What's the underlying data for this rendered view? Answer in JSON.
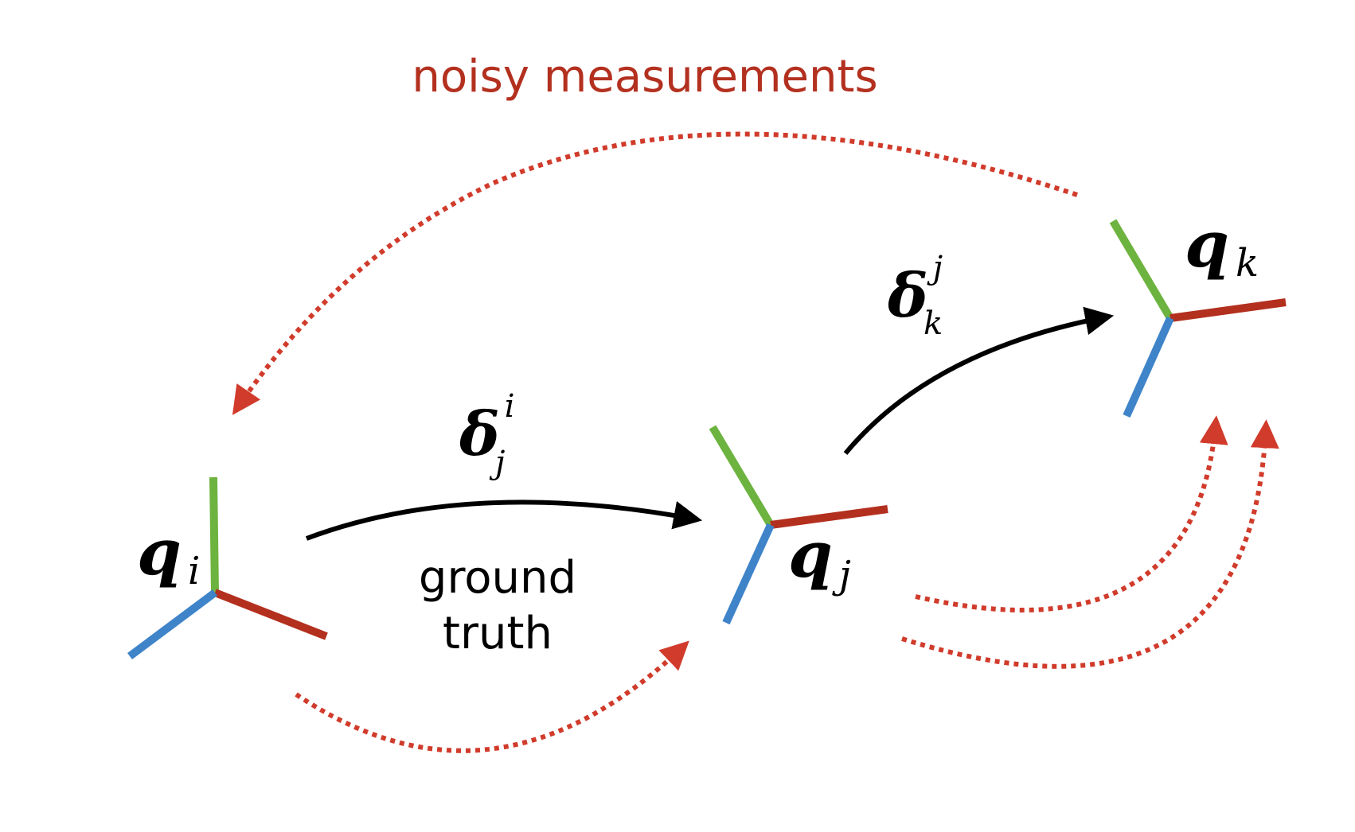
{
  "title": "noisy measurements",
  "ground_truth": {
    "line1": "ground",
    "line2": "truth"
  },
  "frames": {
    "qi": {
      "symbol": "q",
      "subscript": "i"
    },
    "qj": {
      "symbol": "q",
      "subscript": "j"
    },
    "qk": {
      "symbol": "q",
      "subscript": "k"
    }
  },
  "deltas": {
    "ij": {
      "symbol": "δ",
      "superscript": "i",
      "subscript": "j"
    },
    "jk": {
      "symbol": "δ",
      "superscript": "j",
      "subscript": "k"
    }
  },
  "colors": {
    "axis_green": "#6db33f",
    "axis_red": "#b3301f",
    "axis_blue": "#3f84c9",
    "arrow_black": "#000000",
    "dotted_red": "#d13b2b",
    "title_red": "#b3301f"
  }
}
